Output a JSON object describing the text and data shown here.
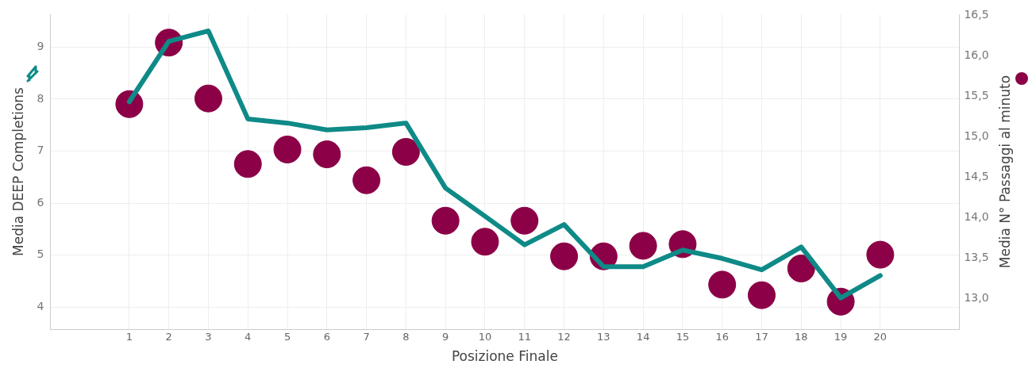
{
  "chart_data": {
    "type": "line",
    "xlabel": "Posizione Finale",
    "ylabel": "Media DEEP Completions",
    "y2label": "Media N° Passaggi al minuto",
    "x": [
      1,
      2,
      3,
      4,
      5,
      6,
      7,
      8,
      9,
      10,
      11,
      12,
      13,
      14,
      15,
      16,
      17,
      18,
      19,
      20
    ],
    "xlim": [
      -1,
      22
    ],
    "xticks": [
      1,
      2,
      3,
      4,
      5,
      6,
      7,
      8,
      9,
      10,
      11,
      12,
      13,
      14,
      15,
      16,
      17,
      18,
      19,
      20
    ],
    "ylim": [
      3.58,
      9.63
    ],
    "yticks": [
      4,
      5,
      6,
      7,
      8,
      9
    ],
    "y2lim": [
      12.62,
      16.51
    ],
    "y2ticks": [
      {
        "value": 13,
        "label": "13,0"
      },
      {
        "value": 13.5,
        "label": "13,5"
      },
      {
        "value": 14,
        "label": "14,0"
      },
      {
        "value": 14.5,
        "label": "14,5"
      },
      {
        "value": 15,
        "label": "15,0"
      },
      {
        "value": 15.5,
        "label": "15,5"
      },
      {
        "value": 16,
        "label": "16,0"
      },
      {
        "value": 16.5,
        "label": "16,5"
      }
    ],
    "grid": true,
    "legend": false,
    "series": [
      {
        "color": "#0e8a87",
        "line_style": "solid",
        "marker": "none",
        "values": [
          7.95,
          9.11,
          9.31,
          7.62,
          7.54,
          7.41,
          7.45,
          7.54,
          6.29,
          5.75,
          5.2,
          5.59,
          4.78,
          4.78,
          5.1,
          4.94,
          4.72,
          5.16,
          4.18,
          4.61
        ]
      },
      {
        "type": "scatter",
        "axis": "y2",
        "color": "#8b0046",
        "marker": "circle",
        "values": [
          15.4,
          16.16,
          15.47,
          14.66,
          14.84,
          14.78,
          14.46,
          14.81,
          13.96,
          13.7,
          13.96,
          13.52,
          13.52,
          13.65,
          13.67,
          13.17,
          13.04,
          13.37,
          12.96,
          13.54
        ]
      }
    ]
  }
}
